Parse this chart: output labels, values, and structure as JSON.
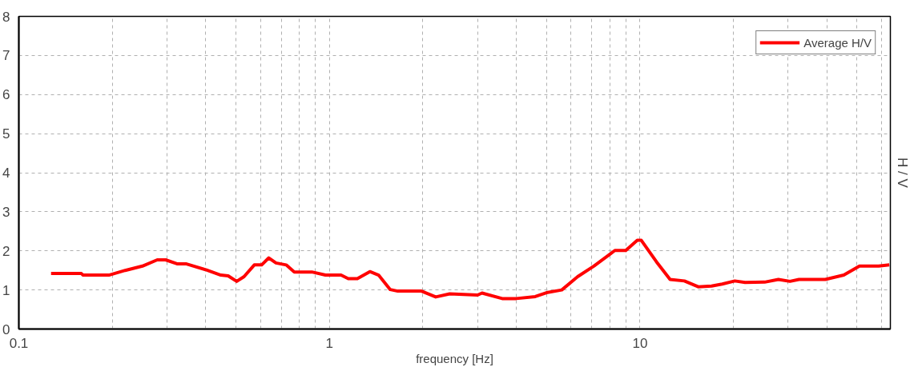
{
  "chart_data": {
    "type": "line",
    "xlabel": "frequency [Hz]",
    "ylabel": "H / V",
    "log": "x",
    "grid": true,
    "legend": "top right",
    "line_style": "solid",
    "marker": "none",
    "xlim": [
      0.1,
      64
    ],
    "xticks": [
      0.1,
      {
        "value": 0.2,
        "label": null
      },
      {
        "value": 0.3,
        "label": null
      },
      {
        "value": 0.4,
        "label": null
      },
      {
        "value": 0.5,
        "label": null
      },
      {
        "value": 0.6,
        "label": null
      },
      {
        "value": 0.7,
        "label": null
      },
      {
        "value": 0.8,
        "label": null
      },
      {
        "value": 0.9,
        "label": null
      },
      1,
      {
        "value": 2,
        "label": null
      },
      {
        "value": 3,
        "label": null
      },
      {
        "value": 4,
        "label": null
      },
      {
        "value": 5,
        "label": null
      },
      {
        "value": 6,
        "label": null
      },
      {
        "value": 7,
        "label": null
      },
      {
        "value": 8,
        "label": null
      },
      {
        "value": 9,
        "label": null
      },
      10,
      {
        "value": 20,
        "label": null
      },
      {
        "value": 30,
        "label": null
      },
      {
        "value": 40,
        "label": null
      },
      {
        "value": 50,
        "label": null
      },
      {
        "value": 60,
        "label": null
      }
    ],
    "ylim": [
      0,
      8
    ],
    "yticks": [
      0,
      1,
      2,
      3,
      4,
      5,
      6,
      7,
      8
    ],
    "x": [
      0.127,
      0.159,
      0.161,
      0.195,
      0.22,
      0.25,
      0.279,
      0.297,
      0.323,
      0.345,
      0.402,
      0.447,
      0.472,
      0.503,
      0.531,
      0.573,
      0.605,
      0.638,
      0.673,
      0.726,
      0.771,
      0.878,
      0.971,
      1.09,
      1.15,
      1.23,
      1.35,
      1.44,
      1.57,
      1.66,
      1.98,
      2.2,
      2.44,
      3.0,
      3.1,
      3.6,
      4.0,
      4.6,
      5.0,
      5.6,
      6.3,
      7.1,
      8.3,
      9.0,
      9.8,
      10.1,
      11.3,
      12.5,
      13.9,
      15.4,
      17.0,
      18.4,
      20.2,
      21.8,
      25.2,
      27.9,
      30.4,
      32.5,
      39.5,
      45.3,
      50.9,
      58.7,
      63.5
    ],
    "series": [
      {
        "name": "Average H/V",
        "color": "#ff0000",
        "values": [
          1.42,
          1.42,
          1.38,
          1.38,
          1.5,
          1.61,
          1.77,
          1.77,
          1.67,
          1.67,
          1.51,
          1.38,
          1.36,
          1.22,
          1.34,
          1.64,
          1.64,
          1.82,
          1.69,
          1.64,
          1.46,
          1.46,
          1.38,
          1.38,
          1.29,
          1.29,
          1.47,
          1.38,
          1.01,
          0.97,
          0.97,
          0.82,
          0.9,
          0.87,
          0.92,
          0.78,
          0.78,
          0.83,
          0.93,
          1.0,
          1.34,
          1.61,
          2.01,
          2.01,
          2.27,
          2.27,
          1.72,
          1.27,
          1.23,
          1.08,
          1.1,
          1.15,
          1.23,
          1.19,
          1.2,
          1.27,
          1.22,
          1.27,
          1.27,
          1.38,
          1.61,
          1.61,
          1.64
        ]
      }
    ]
  }
}
